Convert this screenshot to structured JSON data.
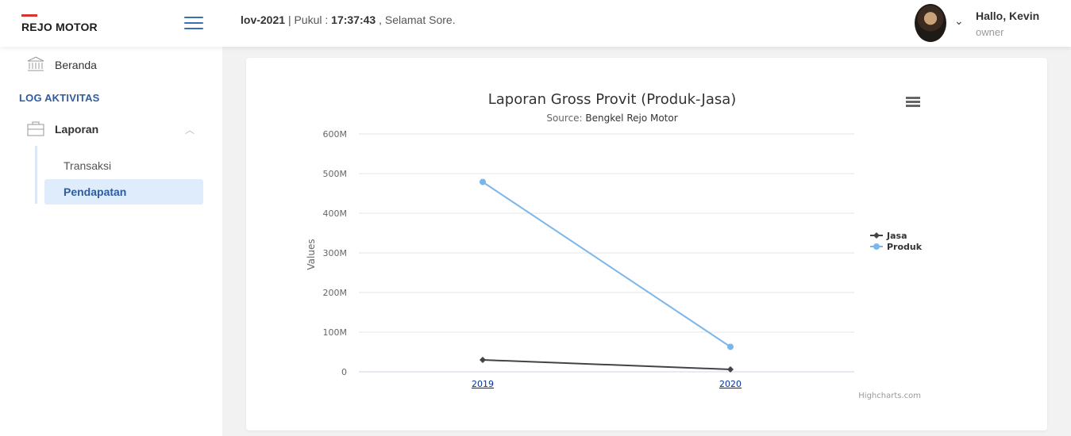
{
  "header": {
    "brand": "REJO MOTOR",
    "date_fragment": "lov-2021",
    "time_label": "| Pukul :",
    "time": "17:37:43",
    "greeting": ", Selamat Sore.",
    "user_greeting": "Hallo, Kevin",
    "user_role": "owner"
  },
  "sidebar": {
    "home": "Beranda",
    "section": "LOG AKTIVITAS",
    "laporan": "Laporan",
    "sub": [
      "Transaksi",
      "Pendapatan"
    ]
  },
  "chart_data": {
    "type": "line",
    "title": "Laporan Gross Provit (Produk-Jasa)",
    "subtitle_prefix": "Source:",
    "subtitle_source": "Bengkel Rejo Motor",
    "xlabel": "",
    "ylabel": "Values",
    "categories": [
      "2019",
      "2020"
    ],
    "ylim": [
      0,
      600000000
    ],
    "yticks": [
      0,
      100000000,
      200000000,
      300000000,
      400000000,
      500000000,
      600000000
    ],
    "ytick_labels": [
      "0",
      "100M",
      "200M",
      "300M",
      "400M",
      "500M",
      "600M"
    ],
    "series": [
      {
        "name": "Jasa",
        "values": [
          30000000,
          6000000
        ],
        "color": "#434348",
        "marker": "diamond"
      },
      {
        "name": "Produk",
        "values": [
          479000000,
          63000000
        ],
        "color": "#7cb5ec",
        "marker": "circle"
      }
    ],
    "legend": "right",
    "grid": true,
    "credits": "Highcharts.com"
  }
}
